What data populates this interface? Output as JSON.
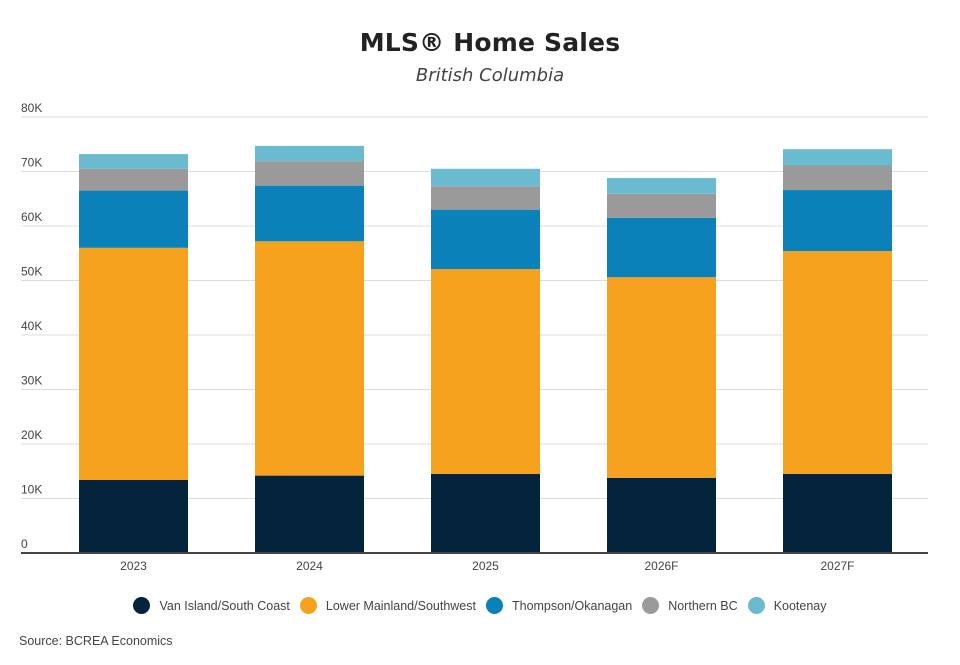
{
  "chart_data": {
    "type": "bar",
    "stacked": true,
    "title": "MLS® Home Sales",
    "subtitle": "British Columbia",
    "xlabel": "",
    "ylabel": "",
    "ylim": [
      0,
      80000
    ],
    "y_ticks": [
      0,
      10000,
      20000,
      30000,
      40000,
      50000,
      60000,
      70000,
      80000
    ],
    "y_tick_labels": [
      "0",
      "10K",
      "20K",
      "30K",
      "40K",
      "50K",
      "60K",
      "70K",
      "80K"
    ],
    "grid": true,
    "legend_position": "bottom",
    "categories": [
      "2023",
      "2024",
      "2025",
      "2026F",
      "2027F"
    ],
    "series": [
      {
        "name": "Van Island/South Coast",
        "color": "#03243b",
        "values": [
          13400,
          14200,
          14500,
          13800,
          14500
        ]
      },
      {
        "name": "Lower Mainland/Southwest",
        "color": "#f7a21e",
        "values": [
          42600,
          43000,
          37600,
          36800,
          40900
        ]
      },
      {
        "name": "Thompson/Okanagan",
        "color": "#0a81b9",
        "values": [
          10500,
          10200,
          10900,
          10900,
          11200
        ]
      },
      {
        "name": "Northern BC",
        "color": "#9a9a9a",
        "values": [
          4000,
          4500,
          4300,
          4400,
          4500
        ]
      },
      {
        "name": "Kootenay",
        "color": "#6bbbd0",
        "values": [
          2700,
          2800,
          3200,
          2900,
          3000
        ]
      }
    ]
  },
  "source": "Source: BCREA Economics"
}
